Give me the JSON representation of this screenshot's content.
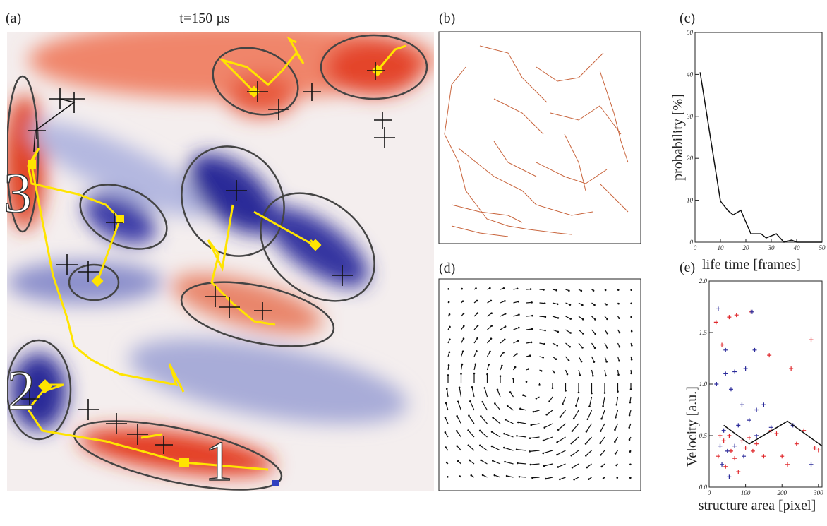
{
  "panels": {
    "a": {
      "label": "(a)",
      "title": "t=150 µs",
      "markers": [
        "1",
        "2",
        "3"
      ]
    },
    "b": {
      "label": "(b)"
    },
    "d": {
      "label": "(d)"
    }
  },
  "chart_data": [
    {
      "type": "line",
      "label": "(c)",
      "xlabel": "life time [frames]",
      "ylabel": "probability [%]",
      "x": [
        2,
        10,
        13,
        15,
        18,
        22,
        26,
        28,
        32,
        35,
        38,
        40,
        45,
        50
      ],
      "values": [
        40.5,
        9.8,
        7.5,
        6.5,
        7.6,
        2,
        2,
        1,
        2,
        0,
        0.5,
        0,
        0,
        0
      ],
      "color": "#111",
      "xlim": [
        0,
        50
      ],
      "ylim": [
        0,
        50
      ],
      "xticks": [
        0,
        10,
        20,
        30,
        40,
        50
      ],
      "yticks": [
        0,
        10,
        20,
        30,
        40,
        50
      ]
    },
    {
      "type": "scatter",
      "label": "(e)",
      "xlabel": "structure area [pixel]",
      "ylabel": "Velocity [a.u.]",
      "xlim": [
        0,
        310
      ],
      "ylim": [
        0,
        2
      ],
      "xticks": [
        0,
        100,
        200,
        300
      ],
      "yticks": [
        {
          "value": 0,
          "label": "0.0"
        },
        0.5,
        {
          "value": 1,
          "label": "1.0"
        },
        1.5,
        {
          "value": 2,
          "label": "2.0"
        }
      ],
      "series": [
        {
          "color": "#e0282c",
          "x": [
            19,
            35,
            55,
            75,
            115,
            280,
            225,
            165,
            30,
            40,
            55,
            60,
            70,
            90,
            110,
            130,
            150,
            170,
            185,
            200,
            215,
            240,
            260,
            290,
            300,
            25,
            45,
            80,
            120,
            100
          ],
          "values": [
            1.6,
            1.38,
            1.65,
            1.67,
            1.7,
            1.43,
            1.15,
            1.28,
            0.5,
            0.45,
            0.5,
            0.35,
            0.28,
            0.45,
            0.48,
            0.42,
            0.3,
            0.55,
            0.52,
            0.3,
            0.22,
            0.42,
            0.55,
            0.38,
            0.36,
            0.3,
            0.2,
            0.15,
            0.35,
            0.38
          ]
        },
        {
          "color": "#2a2a9a",
          "x": [
            25,
            45,
            118,
            125,
            20,
            45,
            70,
            100,
            60,
            90,
            150,
            130,
            110,
            80,
            40,
            30,
            50,
            70,
            95,
            130,
            170,
            35,
            55,
            280,
            230
          ],
          "values": [
            1.73,
            1.33,
            1.7,
            1.33,
            1.0,
            1.1,
            1.12,
            1.15,
            0.95,
            0.8,
            0.8,
            0.75,
            0.65,
            0.6,
            0.55,
            0.4,
            0.35,
            0.4,
            0.3,
            0.5,
            0.58,
            0.22,
            0.1,
            0.22,
            0.6
          ]
        },
        {
          "type": "line",
          "color": "#111",
          "x": [
            40,
            110,
            215,
            310
          ],
          "values": [
            0.6,
            0.42,
            0.64,
            0.4
          ]
        }
      ]
    }
  ]
}
